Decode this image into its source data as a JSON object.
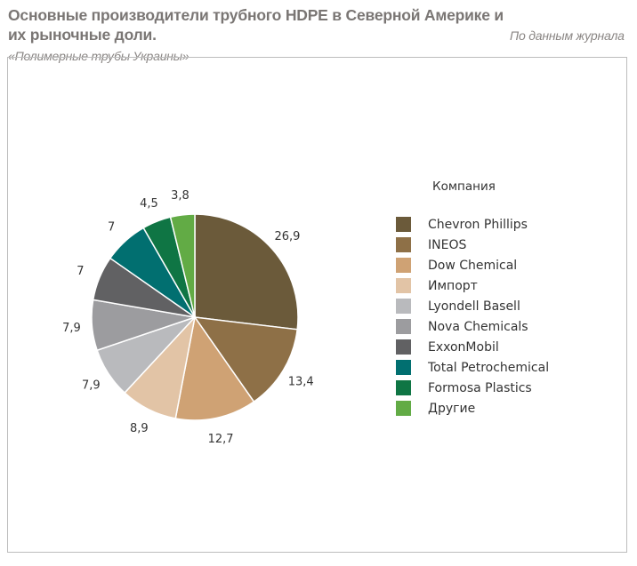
{
  "chart_data": {
    "type": "pie",
    "title": "Основные производители трубного HDPE в Северной Америке и их рыночные доли.",
    "subtitle": "По данным журнала «Полимерные трубы Украины»",
    "legend_title": "Компания",
    "legend_position": "right",
    "start": "top, clockwise",
    "categories": [
      "Chevron Phillips",
      "INEOS",
      "Dow Chemical",
      "Импорт",
      "Lyondell Basell",
      "Nova Chemicals",
      "ExxonMobil",
      "Total Petrochemical",
      "Formosa Plastics",
      "Другие"
    ],
    "values": [
      26.9,
      13.4,
      12.7,
      8.9,
      7.9,
      7.9,
      7,
      7,
      4.5,
      3.8
    ],
    "labels": [
      "26,9",
      "13,4",
      "12,7",
      "8,9",
      "7,9",
      "7,9",
      "7",
      "7",
      "4,5",
      "3,8"
    ],
    "colors": [
      "#6b5a3a",
      "#8e7047",
      "#cfa274",
      "#e2c4a6",
      "#b9babd",
      "#9c9c9f",
      "#616163",
      "#016f70",
      "#0f7544",
      "#62ab45"
    ]
  }
}
